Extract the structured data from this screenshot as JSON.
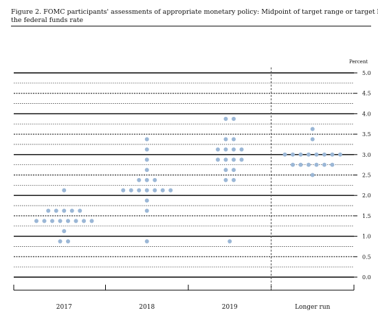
{
  "chart_data": {
    "type": "dot",
    "title": "Figure 2. FOMC participants' assessments of appropriate monetary policy: Midpoint of target range or target level for",
    "subtitle": "the federal funds rate",
    "y_axis_label": "Percent",
    "categories": [
      "2017",
      "2018",
      "2019",
      "Longer run"
    ],
    "values": [
      [
        0.875,
        0.875,
        1.125,
        1.375,
        1.375,
        1.375,
        1.375,
        1.375,
        1.375,
        1.375,
        1.375,
        1.625,
        1.625,
        1.625,
        1.625,
        1.625,
        2.125
      ],
      [
        0.875,
        1.625,
        1.875,
        2.125,
        2.125,
        2.125,
        2.125,
        2.125,
        2.125,
        2.125,
        2.375,
        2.375,
        2.375,
        2.625,
        2.875,
        3.125,
        3.375
      ],
      [
        0.875,
        2.375,
        2.375,
        2.625,
        2.625,
        2.875,
        2.875,
        2.875,
        2.875,
        3.125,
        3.125,
        3.125,
        3.125,
        3.375,
        3.375,
        3.875,
        3.875
      ],
      [
        2.5,
        2.75,
        2.75,
        2.75,
        2.75,
        2.75,
        2.75,
        3.0,
        3.0,
        3.0,
        3.0,
        3.0,
        3.0,
        3.0,
        3.0,
        3.375,
        3.625
      ]
    ],
    "color": "#9bb7d6",
    "ylim": [
      0,
      5
    ],
    "yticks": [
      {
        "value": 0,
        "label": "0.0"
      },
      0.5,
      {
        "value": 1,
        "label": "1.0"
      },
      1.5,
      {
        "value": 2,
        "label": "2.0"
      },
      2.5,
      {
        "value": 3,
        "label": "3.0"
      },
      3.5,
      {
        "value": 4,
        "label": "4.0"
      },
      4.5,
      {
        "value": 5,
        "label": "5.0"
      }
    ],
    "minor_yticks": [
      0.25,
      0.75,
      1.25,
      1.75,
      2.25,
      2.75,
      3.25,
      3.75,
      4.25,
      4.75
    ],
    "grid": true
  }
}
